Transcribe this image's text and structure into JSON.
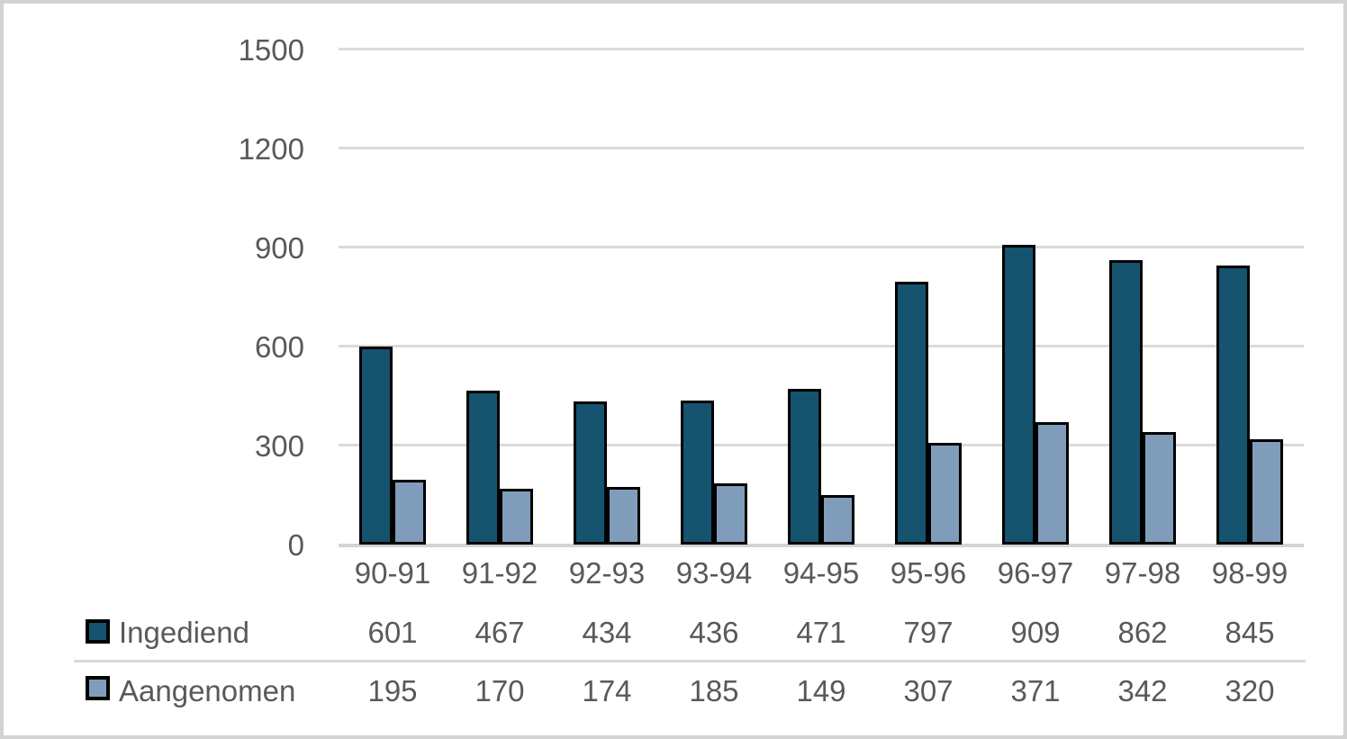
{
  "chart_data": {
    "type": "bar",
    "title": "",
    "categories": [
      "90-91",
      "91-92",
      "92-93",
      "93-94",
      "94-95",
      "95-96",
      "96-97",
      "97-98",
      "98-99"
    ],
    "series": [
      {
        "name": "Ingediend",
        "color": "#15536f",
        "values": [
          601,
          467,
          434,
          436,
          471,
          797,
          909,
          862,
          845
        ]
      },
      {
        "name": "Aangenomen",
        "color": "#7f9dba",
        "values": [
          195,
          170,
          174,
          185,
          149,
          307,
          371,
          342,
          320
        ]
      }
    ],
    "ylim": [
      0,
      1500
    ],
    "yticks": [
      0,
      300,
      600,
      900,
      1200,
      1500
    ],
    "grid": true,
    "legend_position": "bottom-left-table",
    "bar_border_color": "#000000"
  },
  "colors": {
    "text": "#595959",
    "gridline": "#dadada",
    "axis_line": "#d4d4d4",
    "frame_border": "#d2d2d2",
    "background": "#ffffff"
  }
}
